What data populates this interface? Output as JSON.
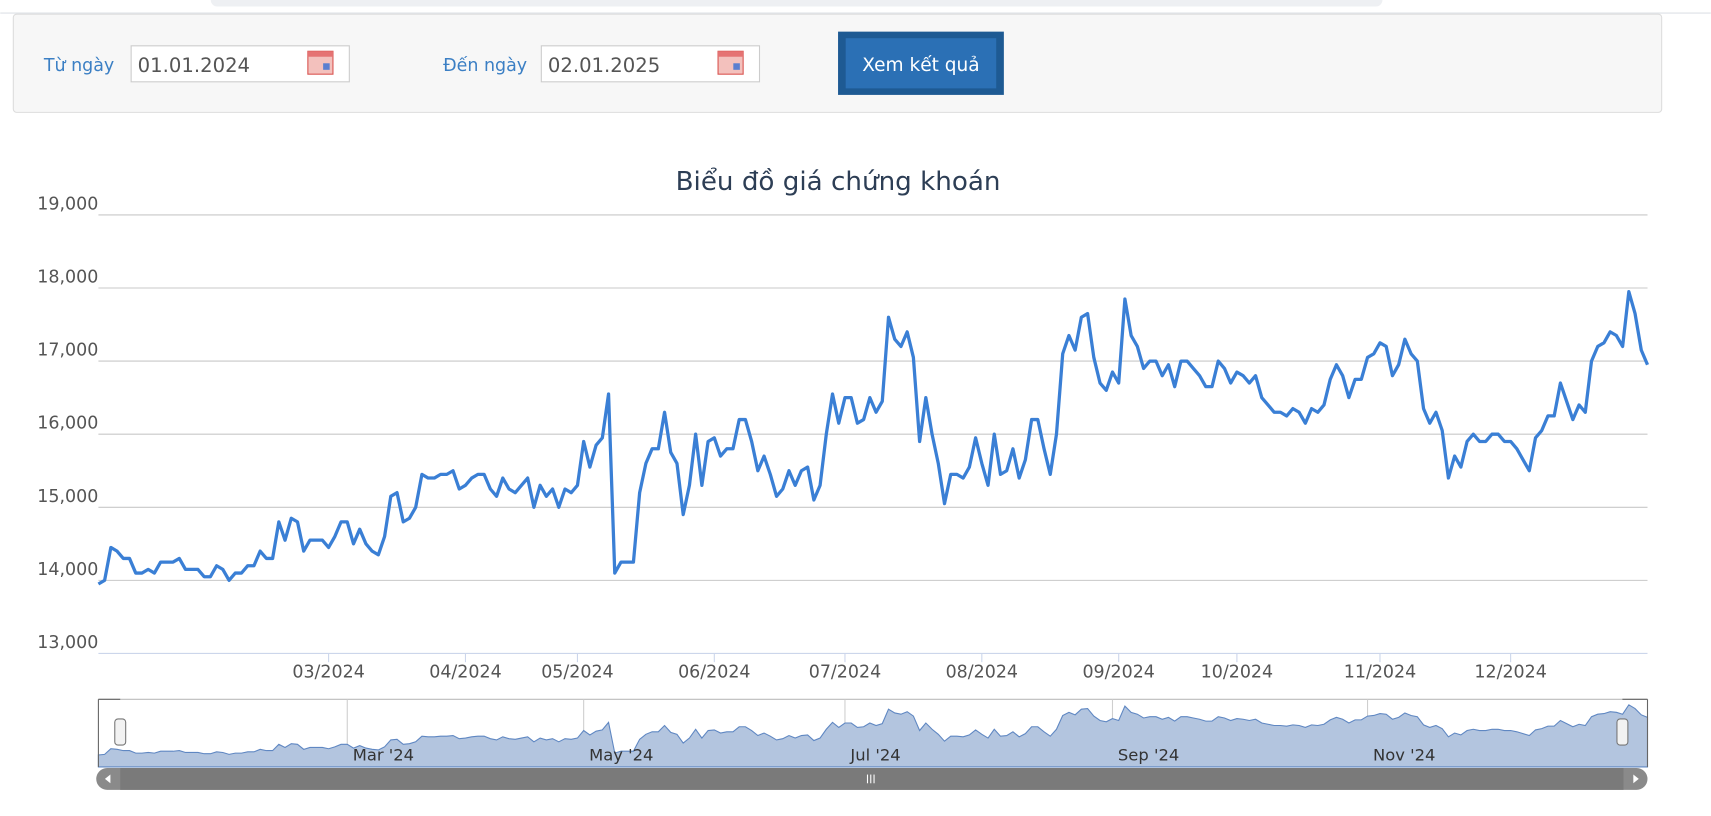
{
  "form": {
    "from_label": "Từ ngày",
    "from_value": "01.01.2024",
    "to_label": "Đến ngày",
    "to_value": "02.01.2025",
    "submit": "Xem kết quả"
  },
  "chart_data": {
    "type": "line",
    "title": "Biểu đồ giá chứng khoán",
    "series": [
      {
        "color": "#3a7fd5",
        "values": [
          13950,
          14000,
          14450,
          14400,
          14300,
          14300,
          14100,
          14100,
          14150,
          14100,
          14250,
          14250,
          14250,
          14300,
          14150,
          14150,
          14150,
          14050,
          14050,
          14200,
          14150,
          14000,
          14100,
          14100,
          14200,
          14200,
          14400,
          14300,
          14300,
          14800,
          14550,
          14850,
          14800,
          14400,
          14550,
          14550,
          14550,
          14450,
          14600,
          14800,
          14800,
          14500,
          14700,
          14500,
          14400,
          14350,
          14600,
          15150,
          15200,
          14800,
          14850,
          15000,
          15450,
          15400,
          15400,
          15450,
          15450,
          15500,
          15250,
          15300,
          15400,
          15450,
          15450,
          15250,
          15150,
          15400,
          15250,
          15200,
          15300,
          15400,
          15000,
          15300,
          15150,
          15250,
          15000,
          15250,
          15200,
          15300,
          15900,
          15550,
          15850,
          15950,
          16550,
          14100,
          14250,
          14250,
          14250,
          15200,
          15600,
          15800,
          15800,
          16300,
          15750,
          15600,
          14900,
          15300,
          16000,
          15300,
          15900,
          15950,
          15700,
          15800,
          15800,
          16200,
          16200,
          15900,
          15500,
          15700,
          15450,
          15150,
          15250,
          15500,
          15300,
          15500,
          15550,
          15100,
          15300,
          16000,
          16550,
          16150,
          16500,
          16500,
          16150,
          16200,
          16500,
          16300,
          16450,
          17600,
          17300,
          17200,
          17400,
          17050,
          15900,
          16500,
          16000,
          15600,
          15050,
          15450,
          15450,
          15400,
          15550,
          15950,
          15600,
          15300,
          16000,
          15450,
          15500,
          15800,
          15400,
          15650,
          16200,
          16200,
          15800,
          15450,
          16000,
          17100,
          17350,
          17150,
          17600,
          17650,
          17050,
          16700,
          16600,
          16850,
          16700,
          17850,
          17350,
          17200,
          16900,
          17000,
          17000,
          16800,
          16950,
          16650,
          17000,
          17000,
          16900,
          16800,
          16650,
          16650,
          17000,
          16900,
          16700,
          16850,
          16800,
          16700,
          16800,
          16500,
          16400,
          16300,
          16300,
          16250,
          16350,
          16300,
          16150,
          16350,
          16300,
          16400,
          16750,
          16950,
          16800,
          16500,
          16750,
          16750,
          17050,
          17100,
          17250,
          17200,
          16800,
          16950,
          17300,
          17100,
          17000,
          16350,
          16150,
          16300,
          16050,
          15400,
          15700,
          15550,
          15900,
          16000,
          15900,
          15900,
          16000,
          16000,
          15900,
          15900,
          15800,
          15650,
          15500,
          15950,
          16050,
          16250,
          16250,
          16700,
          16450,
          16200,
          16400,
          16300,
          17000,
          17200,
          17250,
          17400,
          17350,
          17200,
          17950,
          17650,
          17150,
          16950
        ]
      }
    ],
    "ylim": [
      13000,
      19000
    ],
    "yticks": [
      {
        "value": 13000,
        "label": "13,000"
      },
      {
        "value": 14000,
        "label": "14,000"
      },
      {
        "value": 15000,
        "label": "15,000"
      },
      {
        "value": 16000,
        "label": "16,000"
      },
      {
        "value": 17000,
        "label": "17,000"
      },
      {
        "value": 18000,
        "label": "18,000"
      },
      {
        "value": 19000,
        "label": "19,000"
      }
    ],
    "xlim": [
      0,
      249
    ],
    "xticks": [
      {
        "value": 37,
        "label": "03/2024"
      },
      {
        "value": 59,
        "label": "04/2024"
      },
      {
        "value": 77,
        "label": "05/2024"
      },
      {
        "value": 99,
        "label": "06/2024"
      },
      {
        "value": 120,
        "label": "07/2024"
      },
      {
        "value": 142,
        "label": "08/2024"
      },
      {
        "value": 164,
        "label": "09/2024"
      },
      {
        "value": 183,
        "label": "10/2024"
      },
      {
        "value": 206,
        "label": "11/2024"
      },
      {
        "value": 227,
        "label": "12/2024"
      }
    ],
    "grid": true,
    "navigator_ticks": [
      {
        "value": 40,
        "label": "Mar '24"
      },
      {
        "value": 78,
        "label": "May '24"
      },
      {
        "value": 120,
        "label": "Jul '24"
      },
      {
        "value": 163,
        "label": "Sep '24"
      },
      {
        "value": 204,
        "label": "Nov '24"
      }
    ]
  }
}
